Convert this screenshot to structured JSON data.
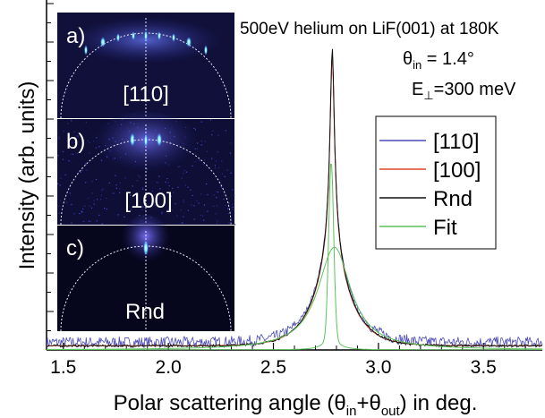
{
  "chart_data": {
    "type": "line",
    "title": "500eV helium on LiF(001) at 180K",
    "annotations": [
      {
        "symbol": "θ",
        "sub": "in",
        "rest": " = 1.4°"
      },
      {
        "symbol": "E",
        "sub": "⊥",
        "rest": "=300 meV"
      }
    ],
    "xlabel": {
      "pre": "Polar scattering angle (θ",
      "sub1": "in",
      "mid": "+θ",
      "sub2": "out",
      "post": ") in deg."
    },
    "ylabel": "Intensity (arb. units)",
    "xlim": [
      1.42,
      3.78
    ],
    "ylim": [
      0,
      1.0
    ],
    "xticks": [
      1.5,
      2.0,
      2.5,
      3.0,
      3.5
    ],
    "xtick_labels": [
      "1.5",
      "2.0",
      "2.5",
      "3.0",
      "3.5"
    ],
    "legend": {
      "position": "right",
      "entries": [
        {
          "label": "[110]",
          "color": "#4a4ab8"
        },
        {
          "label": "[100]",
          "color": "#e0462a"
        },
        {
          "label": "Rnd",
          "color": "#111111"
        },
        {
          "label": "Fit",
          "color": "#5cc25a"
        }
      ]
    },
    "series": [
      {
        "name": "[110]",
        "color": "#4a4ab8",
        "model": {
          "baseline": 0.022,
          "peak_center": 2.78,
          "peak_height": 0.86,
          "noise": 0.016
        }
      },
      {
        "name": "[100]",
        "color": "#e0462a",
        "model": {
          "baseline": 0.012,
          "peak_center": 2.78,
          "peak_height": 0.85,
          "noise": 0.0
        }
      },
      {
        "name": "Rnd",
        "color": "#111111",
        "model": {
          "baseline": 0.012,
          "peak_center": 2.78,
          "peak_height": 0.87,
          "noise": 0.003
        }
      },
      {
        "name": "Fit",
        "color": "#5cc25a",
        "components": [
          {
            "center": 2.775,
            "height": 0.5,
            "width": 0.012,
            "shape": "narrow"
          },
          {
            "center": 2.79,
            "height": 0.295,
            "width": 0.095,
            "shape": "broad"
          }
        ]
      }
    ],
    "insets": [
      {
        "panel": "a)",
        "label": "[110]"
      },
      {
        "panel": "b)",
        "label": "[100]"
      },
      {
        "panel": "c)",
        "label": "Rnd"
      }
    ],
    "colors": {
      "inset_background": "#10103a",
      "arc": "#e8e8ff",
      "spot": "#7ff0ff"
    }
  }
}
